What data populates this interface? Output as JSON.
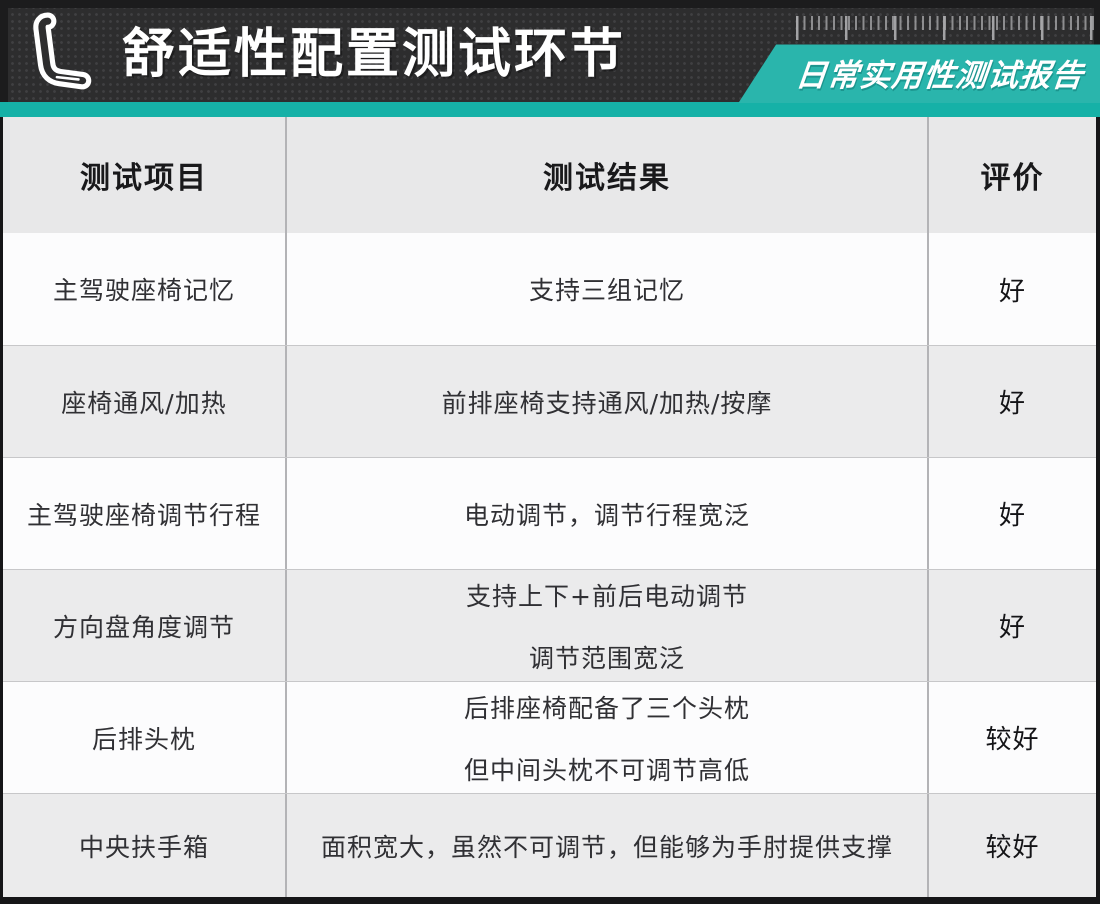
{
  "header": {
    "title": "舒适性配置测试环节",
    "badge": "日常实用性测试报告",
    "icons": {
      "seat": "car-seat-icon",
      "ruler": "ruler-tick-pattern",
      "background": "dot-grid-pattern"
    },
    "colors": {
      "dark_bar": "#2d2d2e",
      "banner_teal": "#2ab5ac",
      "stripe_teal": "#16b1a7"
    }
  },
  "table": {
    "columns": [
      "测试项目",
      "测试结果",
      "评价"
    ],
    "rows": [
      {
        "item": "主驾驶座椅记忆",
        "result": [
          "支持三组记忆"
        ],
        "rating": "好"
      },
      {
        "item": "座椅通风/加热",
        "result": [
          "前排座椅支持通风/加热/按摩"
        ],
        "rating": "好"
      },
      {
        "item": "主驾驶座椅调节行程",
        "result": [
          "电动调节，调节行程宽泛"
        ],
        "rating": "好"
      },
      {
        "item": "方向盘角度调节",
        "result": [
          "支持上下+前后电动调节",
          "调节范围宽泛"
        ],
        "rating": "好"
      },
      {
        "item": "后排头枕",
        "result": [
          "后排座椅配备了三个头枕",
          "但中间头枕不可调节高低"
        ],
        "rating": "较好"
      },
      {
        "item": "中央扶手箱",
        "result": [
          "面积宽大，虽然不可调节，但能够为手肘提供支撑"
        ],
        "rating": "较好"
      }
    ],
    "colors": {
      "header_bg": "#e8e8e9",
      "row_light": "#fcfcfd",
      "row_shade": "#ebebec",
      "outer_border": "#161618"
    }
  }
}
